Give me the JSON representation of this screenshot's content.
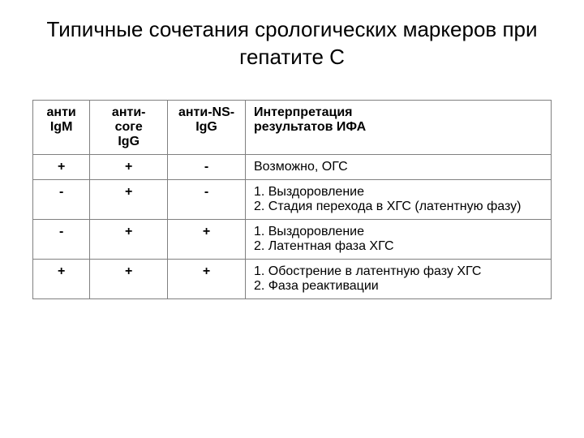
{
  "title": "Типичные сочетания срологических маркеров при  гепатите С",
  "table": {
    "columns": [
      {
        "label_line1": "анти",
        "label_line2": "IgM"
      },
      {
        "label_line1": "анти-соге",
        "label_line2": "IgG"
      },
      {
        "label_line1": "анти-NS-",
        "label_line2": "IgG"
      },
      {
        "label_line1": "Интерпретация",
        "label_line2": "результатов ИФА"
      }
    ],
    "rows": [
      {
        "c1": "+",
        "c2": "+",
        "c3": "-",
        "interp": "Возможно, ОГС"
      },
      {
        "c1": "-",
        "c2": "+",
        "c3": "-",
        "interp": "1. Выздоровление\n2. Стадия перехода в ХГС (латентную фазу)"
      },
      {
        "c1": "-",
        "c2": "+",
        "c3": "+",
        "interp": "1. Выздоровление\n2. Латентная фаза ХГС"
      },
      {
        "c1": "+",
        "c2": "+",
        "c3": "+",
        "interp": "1. Обострение в латентную фазу ХГС\n2. Фаза реактивации"
      }
    ]
  },
  "styling": {
    "background_color": "#ffffff",
    "text_color": "#000000",
    "border_color": "#808080",
    "title_fontsize": 26,
    "table_fontsize": 16,
    "col_widths_pct": [
      11,
      15,
      15,
      59
    ]
  }
}
